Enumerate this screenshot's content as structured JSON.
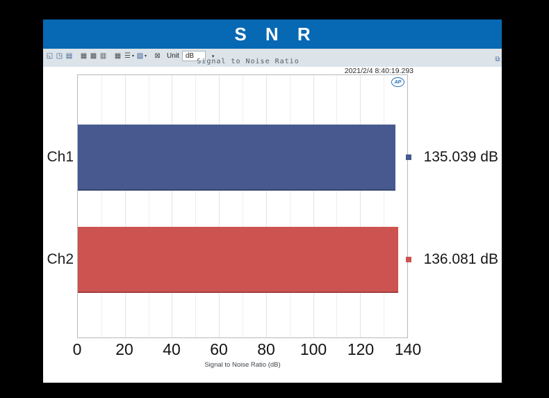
{
  "window": {
    "banner_title": "S N R",
    "banner_color": "#0768b4"
  },
  "toolbar": {
    "icons": [
      {
        "name": "copy-graph-icon",
        "glyph": "◱",
        "tone": "blue"
      },
      {
        "name": "save-graph-icon",
        "glyph": "◳",
        "tone": "blue"
      },
      {
        "name": "print-graph-icon",
        "glyph": "▤",
        "tone": "blue"
      },
      {
        "name": "zoom-graph-icon",
        "glyph": "▦",
        "tone": "dark",
        "gap_before": true
      },
      {
        "name": "tile-views-icon",
        "glyph": "▩",
        "tone": "dark"
      },
      {
        "name": "cascade-views-icon",
        "glyph": "▥",
        "tone": "dark"
      },
      {
        "name": "data-table-icon",
        "glyph": "▦",
        "tone": "dark",
        "gap_before": true
      },
      {
        "name": "trace-style-dropdown-icon",
        "glyph": "☰",
        "tone": "dark",
        "dropdown": true
      },
      {
        "name": "graph-style-dropdown-icon",
        "glyph": "▨",
        "tone": "blue",
        "dropdown": true
      },
      {
        "name": "clear-graph-icon",
        "glyph": "⊠",
        "tone": "dark",
        "gap_before": true
      }
    ],
    "unit_label": "Unit",
    "unit_value": "dB",
    "popout_glyph": "⧉"
  },
  "chart": {
    "title": "Signal to Noise Ratio",
    "timestamp": "2021/2/4 8:40:19.293",
    "logo_text": "AP",
    "x_ticks": [
      "0",
      "20",
      "40",
      "60",
      "80",
      "100",
      "120",
      "140"
    ],
    "xlabel": "Signal to Noise Ratio (dB)"
  },
  "chart_data": {
    "type": "bar",
    "orientation": "horizontal",
    "title": "Signal to Noise Ratio",
    "xlabel": "Signal to Noise Ratio (dB)",
    "categories": [
      "Ch1",
      "Ch2"
    ],
    "values": [
      135.039,
      136.081
    ],
    "value_labels": [
      "135.039 dB",
      "136.081 dB"
    ],
    "colors": [
      "#47598f",
      "#cd5351"
    ],
    "xlim": [
      0,
      140
    ],
    "grid_step": 10,
    "major_step": 20,
    "legend_position": "right-of-plot"
  }
}
